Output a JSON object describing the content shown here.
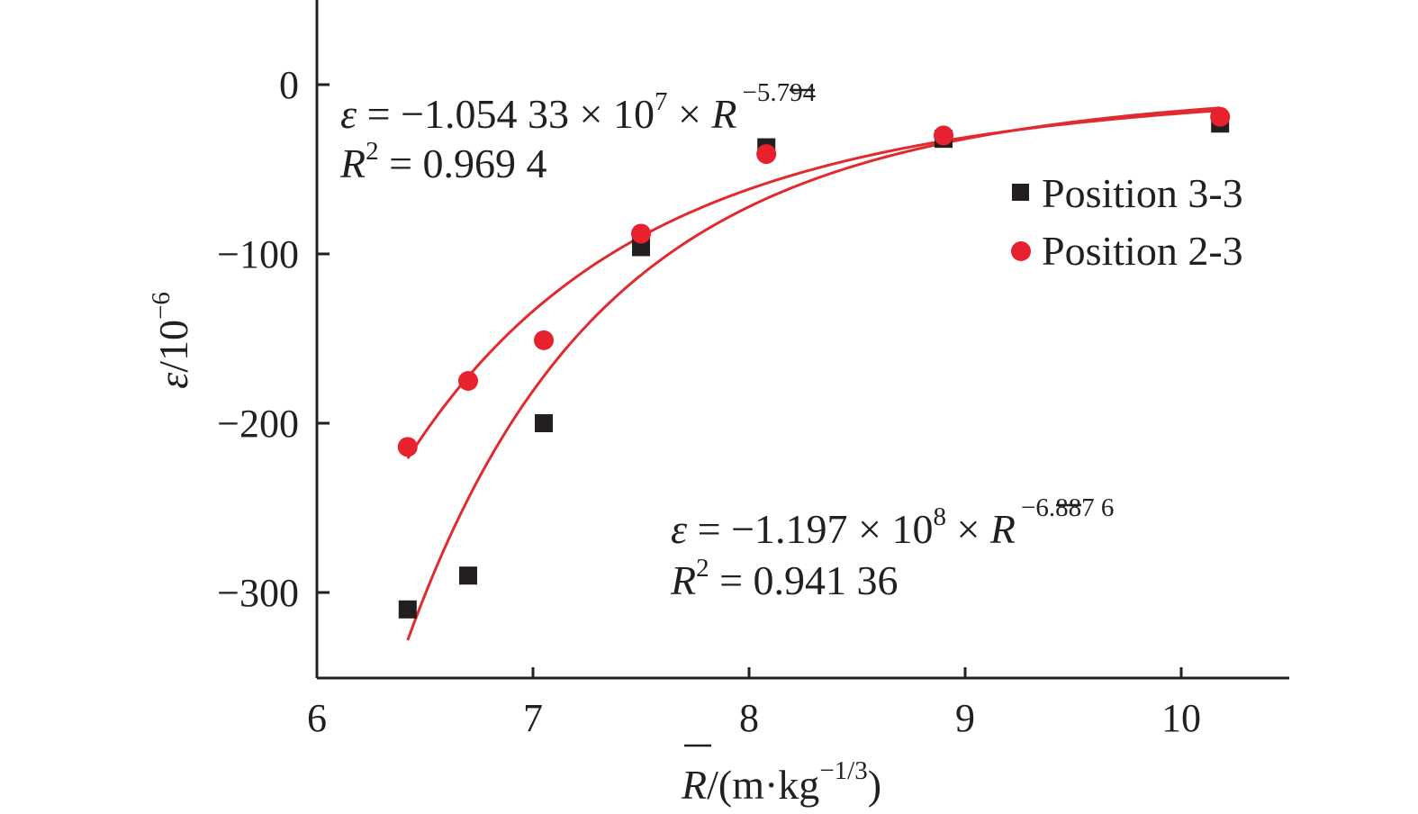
{
  "chart_data": {
    "type": "scatter",
    "title": "",
    "xlabel": {
      "main": "/(m·kg",
      "sup": "−1/3",
      "close": ")",
      "var": "R"
    },
    "ylabel": {
      "main": "/10",
      "sup": "−6",
      "var": "ε"
    },
    "xlim": [
      6,
      10.5
    ],
    "ylim": [
      -350,
      50
    ],
    "xticks": [
      6,
      7,
      8,
      9,
      10
    ],
    "xtick_labels": [
      "6",
      "7",
      "8",
      "9",
      "10"
    ],
    "yticks": [
      0,
      -100,
      -200,
      -300
    ],
    "ytick_labels": [
      "0",
      "−100",
      "−200",
      "−300"
    ],
    "grid": false,
    "legend_position": "right",
    "series": [
      {
        "name": "Position 3-3",
        "marker": "square",
        "color": "#231f20",
        "x": [
          6.42,
          6.7,
          7.05,
          7.5,
          8.08,
          8.9,
          10.18
        ],
        "y": [
          -310,
          -290,
          -200,
          -96,
          -37,
          -32,
          -23
        ],
        "fit": {
          "a": -119700000,
          "b": -6.8876
        }
      },
      {
        "name": "Position 2-3",
        "marker": "circle",
        "color": "#e8212e",
        "x": [
          6.42,
          6.7,
          7.05,
          7.5,
          8.08,
          8.9,
          10.18
        ],
        "y": [
          -214,
          -175,
          -151,
          -88,
          -41,
          -30,
          -19
        ],
        "fit": {
          "a": -10543300,
          "b": -5.794
        }
      }
    ],
    "annotations": [
      {
        "eq_var": "ε",
        "eq_main": " = −1.054 33 × 10",
        "eq_exp": "7",
        "eq_times": " × ",
        "eq_r": "R",
        "eq_rexp": "−5.794",
        "r2_var": "R",
        "r2_exp": "2",
        "r2_value": " = 0.969 4"
      },
      {
        "eq_var": "ε",
        "eq_main": " = −1.197 × 10",
        "eq_exp": "8",
        "eq_times": " × ",
        "eq_r": "R",
        "eq_rexp": "−6.887 6",
        "r2_var": "R",
        "r2_exp": "2",
        "r2_value": " = 0.941 36"
      }
    ],
    "fit_color": "#e12a2e"
  }
}
